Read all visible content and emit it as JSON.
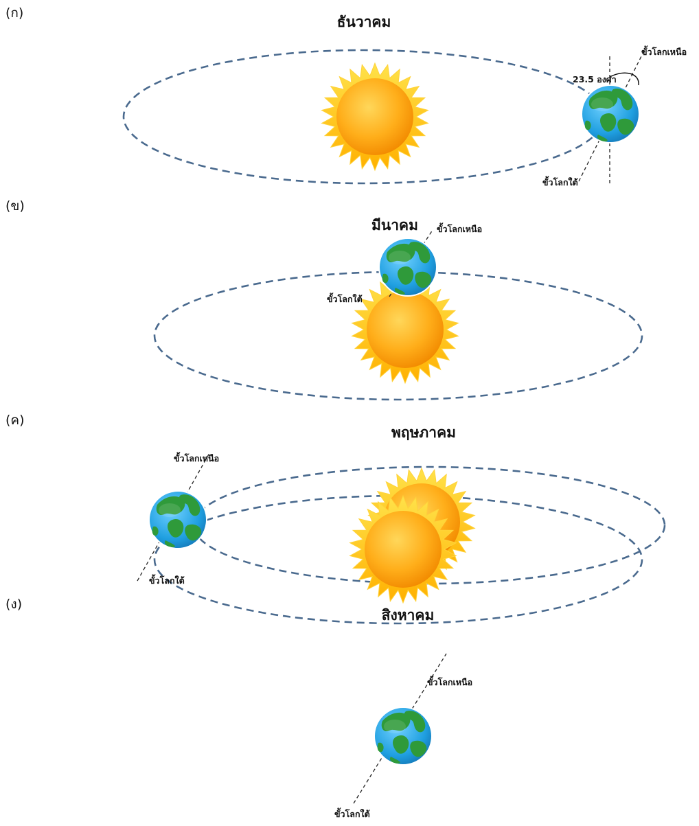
{
  "panels": [
    {
      "label": "(ก)",
      "month": "ธันวาคม",
      "north_pole": "ขั้วโลกเหนือ",
      "south_pole": "ขั้วโลกใต้",
      "tilt": "23.5 องศา"
    },
    {
      "label": "(ข)",
      "month": "มีนาคม",
      "north_pole": "ขั้วโลกเหนือ",
      "south_pole": "ขั้วโลกใต้"
    },
    {
      "label": "(ค)",
      "month": "พฤษภาคม",
      "north_pole": "ขั้วโลกเหนือ",
      "south_pole": "ขั้วโลกใต้"
    },
    {
      "label": "(ง)",
      "month": "สิงหาคม",
      "north_pole": "ขั้วโลกเหนือ",
      "south_pole": "ขั้วโลกใต้"
    }
  ],
  "colors": {
    "orbit": "#4a6a8e",
    "sun_rays": "#ffc81a",
    "sun_core": "#ffa500",
    "ocean": "#2ea8e6",
    "land": "#2f9a3a"
  }
}
